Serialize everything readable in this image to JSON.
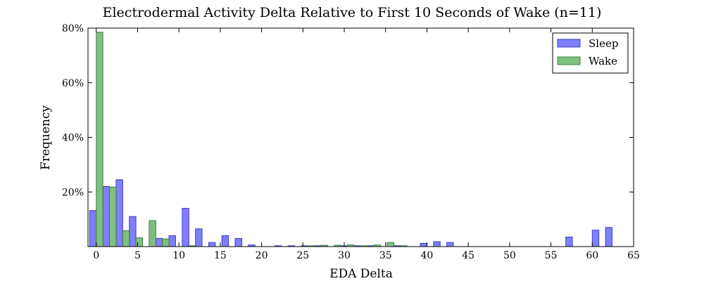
{
  "chart_data": {
    "type": "bar",
    "title": "Electrodermal Activity Delta Relative to First 10 Seconds of Wake (n=11)",
    "xlabel": "EDA Delta",
    "ylabel": "Frequency",
    "xlim": [
      -1,
      65
    ],
    "ylim": [
      0,
      80
    ],
    "bin_width": 1.6,
    "x_ticks": [
      0,
      5,
      10,
      15,
      20,
      25,
      30,
      35,
      40,
      45,
      50,
      55,
      60,
      65
    ],
    "y_ticks": [
      20,
      40,
      60,
      80
    ],
    "y_tick_labels": [
      "20%",
      "40%",
      "60%",
      "80%"
    ],
    "legend": {
      "position": "top-right"
    },
    "series": [
      {
        "name": "Sleep",
        "color": "#7f7fff",
        "edge_color": "#3f3fbf",
        "x": [
          -0.8,
          0.8,
          2.4,
          4.0,
          5.6,
          7.2,
          8.8,
          10.4,
          12.0,
          13.6,
          15.2,
          16.8,
          18.4,
          20.0,
          21.6,
          23.2,
          24.8,
          26.4,
          28.0,
          29.6,
          31.2,
          32.8,
          34.4,
          36.0,
          37.6,
          39.2,
          40.8,
          42.4,
          44.0,
          45.6,
          47.2,
          48.8,
          50.4,
          52.0,
          53.6,
          55.2,
          56.8,
          58.4,
          60.0,
          61.6
        ],
        "values": [
          13.2,
          22.0,
          24.5,
          11.0,
          0,
          3.0,
          4.0,
          14.0,
          6.5,
          1.5,
          4.0,
          3.0,
          0.6,
          0,
          0.3,
          0.3,
          0.3,
          0.3,
          0,
          0.3,
          0.3,
          0.3,
          0,
          0.3,
          0,
          1.2,
          1.8,
          1.5,
          0,
          0,
          0,
          0,
          0,
          0,
          0,
          0,
          3.5,
          0,
          6.0,
          7.0
        ]
      },
      {
        "name": "Wake",
        "color": "#7fbf7f",
        "edge_color": "#3f7f3f",
        "x": [
          -0.8,
          0.8,
          2.4,
          4.0,
          5.6,
          7.2,
          8.8,
          10.4,
          12.0,
          13.6,
          15.2,
          16.8,
          18.4,
          20.0,
          21.6,
          23.2,
          24.8,
          26.4,
          28.0,
          29.6,
          31.2,
          32.8,
          34.4,
          36.0,
          37.6,
          39.2,
          40.8,
          42.4,
          44.0,
          45.6,
          47.2,
          48.8,
          50.4,
          52.0,
          53.6,
          55.2,
          56.8,
          58.4,
          60.0,
          61.6
        ],
        "values": [
          78.5,
          21.8,
          5.8,
          3.2,
          9.5,
          2.8,
          0,
          0.3,
          0,
          0,
          0,
          0,
          0,
          0,
          0,
          0,
          0.3,
          0.5,
          0.5,
          0.6,
          0.3,
          0.6,
          1.5,
          0.3,
          0,
          0,
          0,
          0,
          0,
          0,
          0,
          0,
          0,
          0,
          0,
          0,
          0,
          0,
          0,
          0
        ]
      }
    ]
  }
}
